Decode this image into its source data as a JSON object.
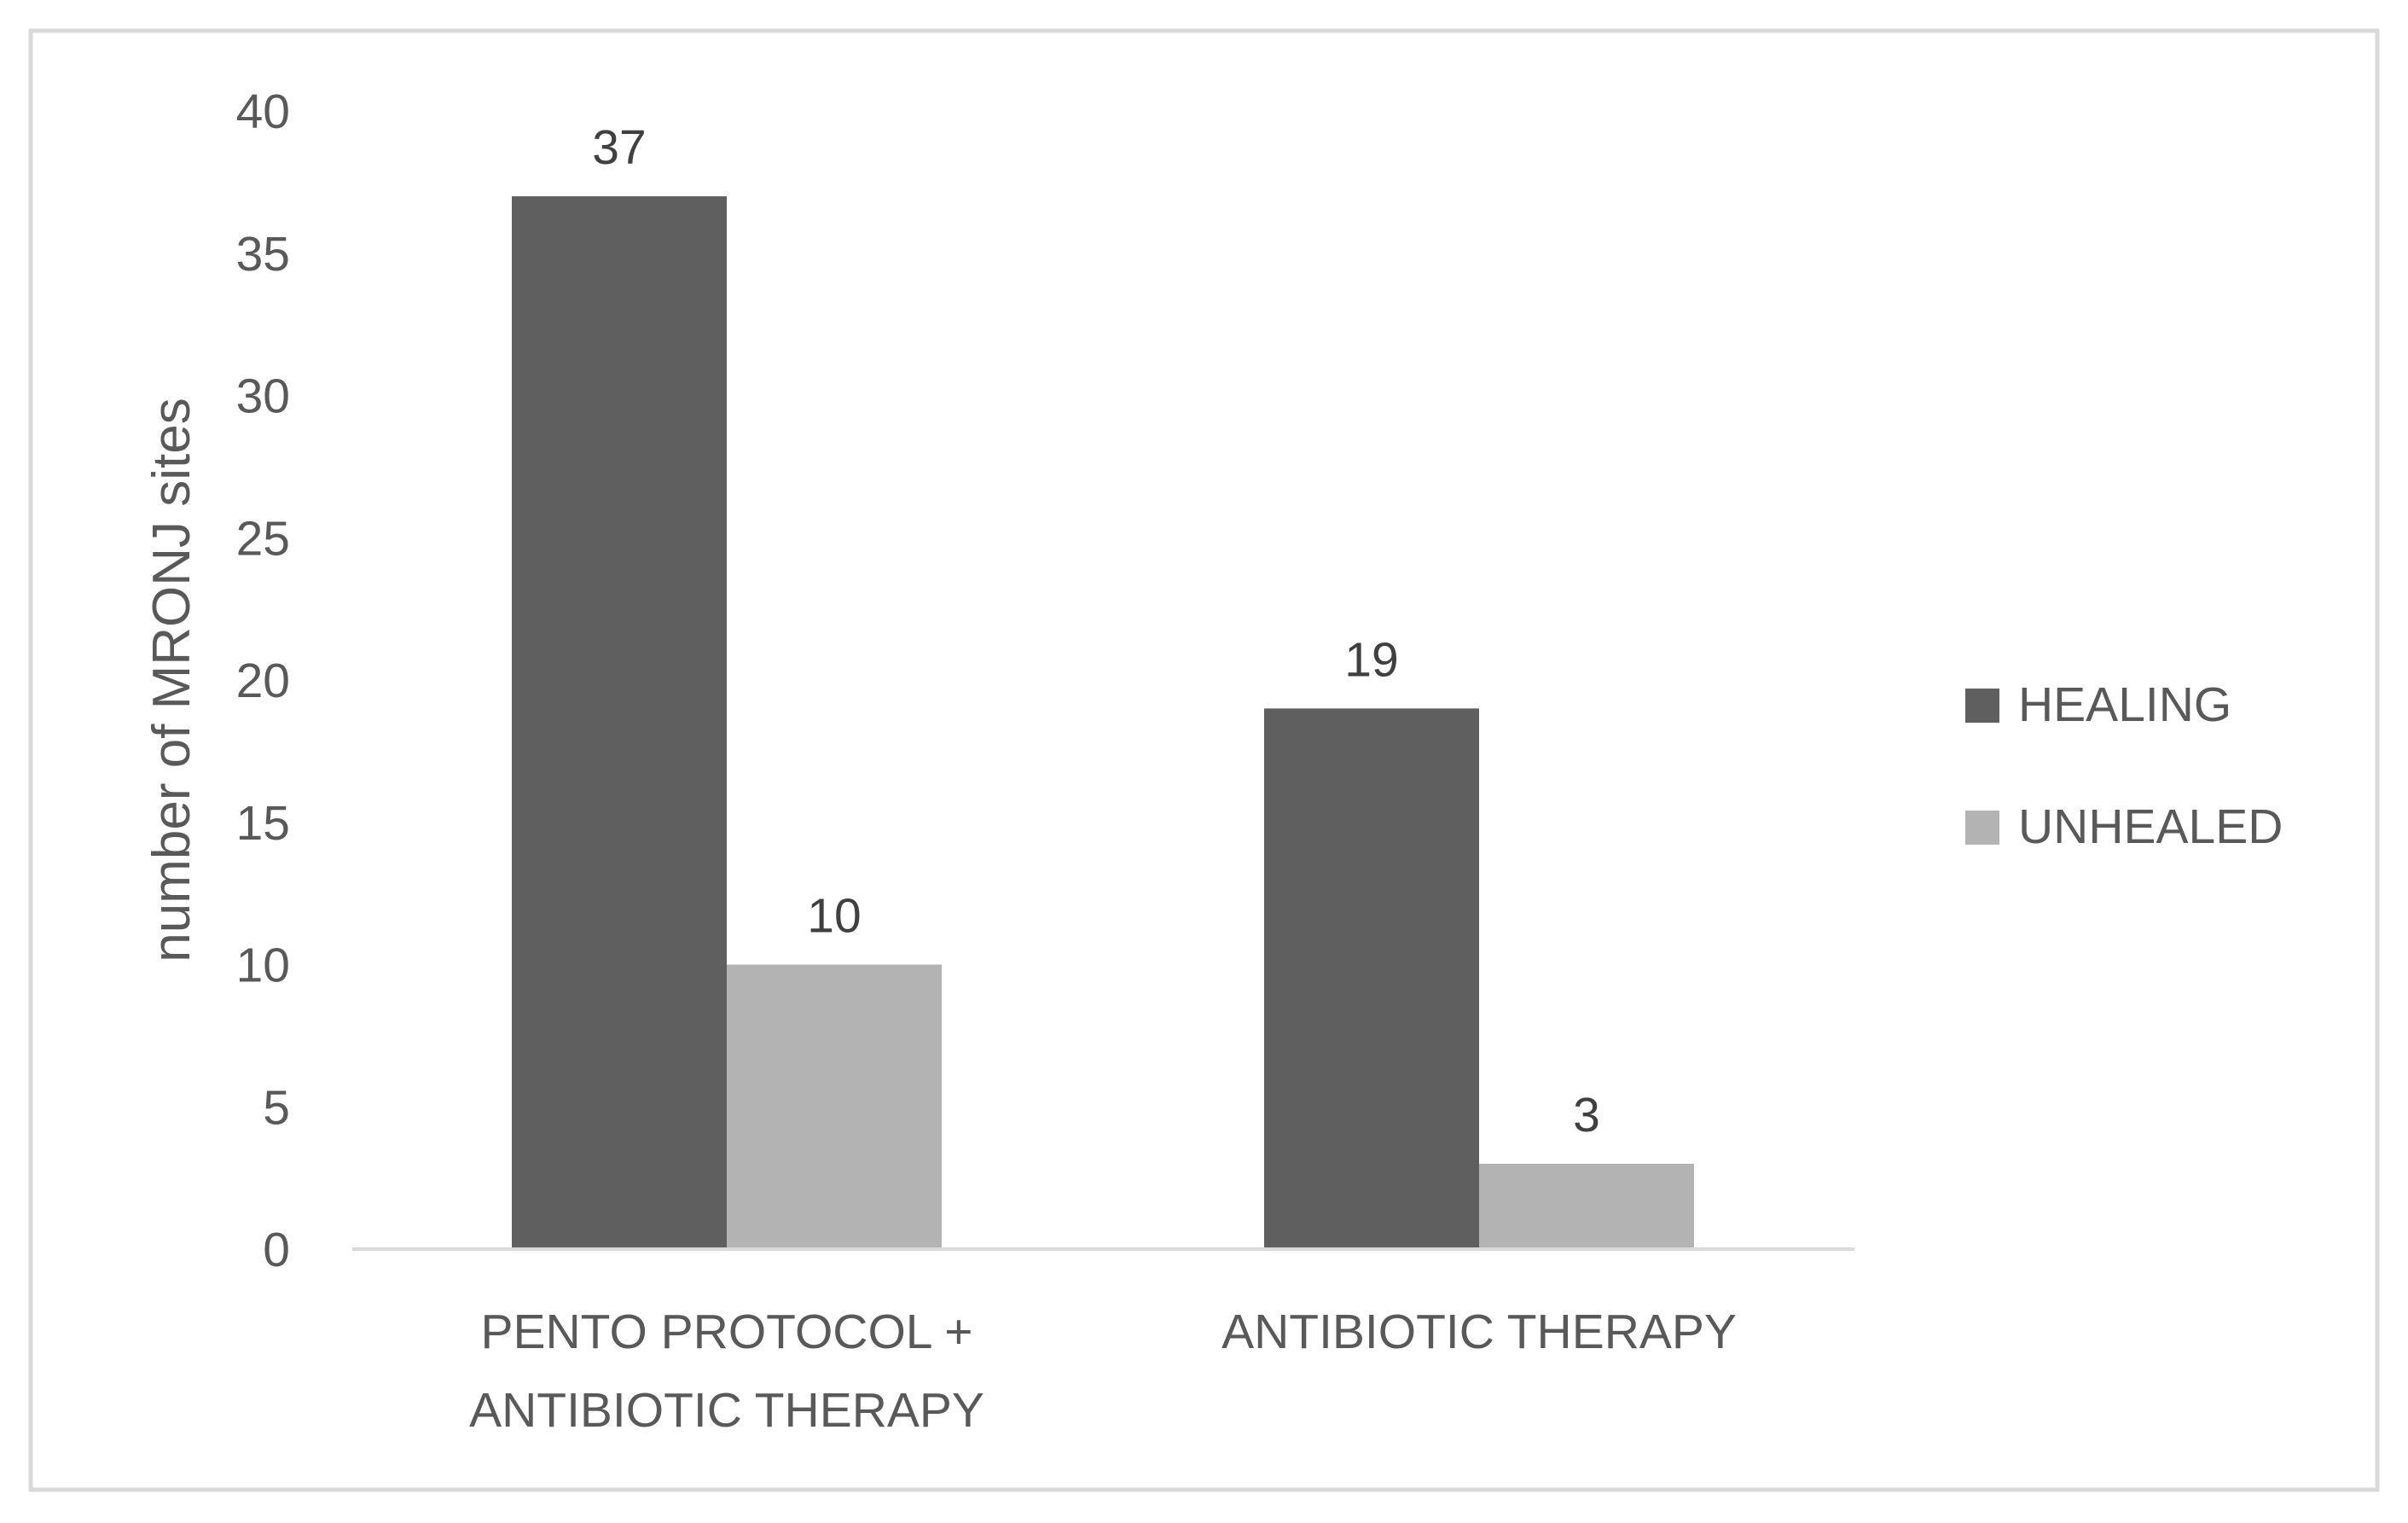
{
  "chart_data": {
    "type": "bar",
    "categories": [
      [
        "PENTO PROTOCOL +",
        "ANTIBIOTIC THERAPY"
      ],
      [
        "ANTIBIOTIC THERAPY"
      ]
    ],
    "series": [
      {
        "name": "HEALING",
        "values": [
          37,
          19
        ],
        "color": "#5f5f5f"
      },
      {
        "name": "UNHEALED",
        "values": [
          10,
          3
        ],
        "color": "#b3b3b3"
      }
    ],
    "title": "",
    "xlabel": "",
    "ylabel": "number of MRONJ sites",
    "ylim": [
      0,
      40
    ],
    "yticks": [
      0,
      5,
      10,
      15,
      20,
      25,
      30,
      35,
      40
    ],
    "grid": false,
    "legend_position": "right",
    "data_labels": true
  },
  "colors": {
    "frame": "#d9d9d9",
    "axis": "#d9d9d9"
  }
}
